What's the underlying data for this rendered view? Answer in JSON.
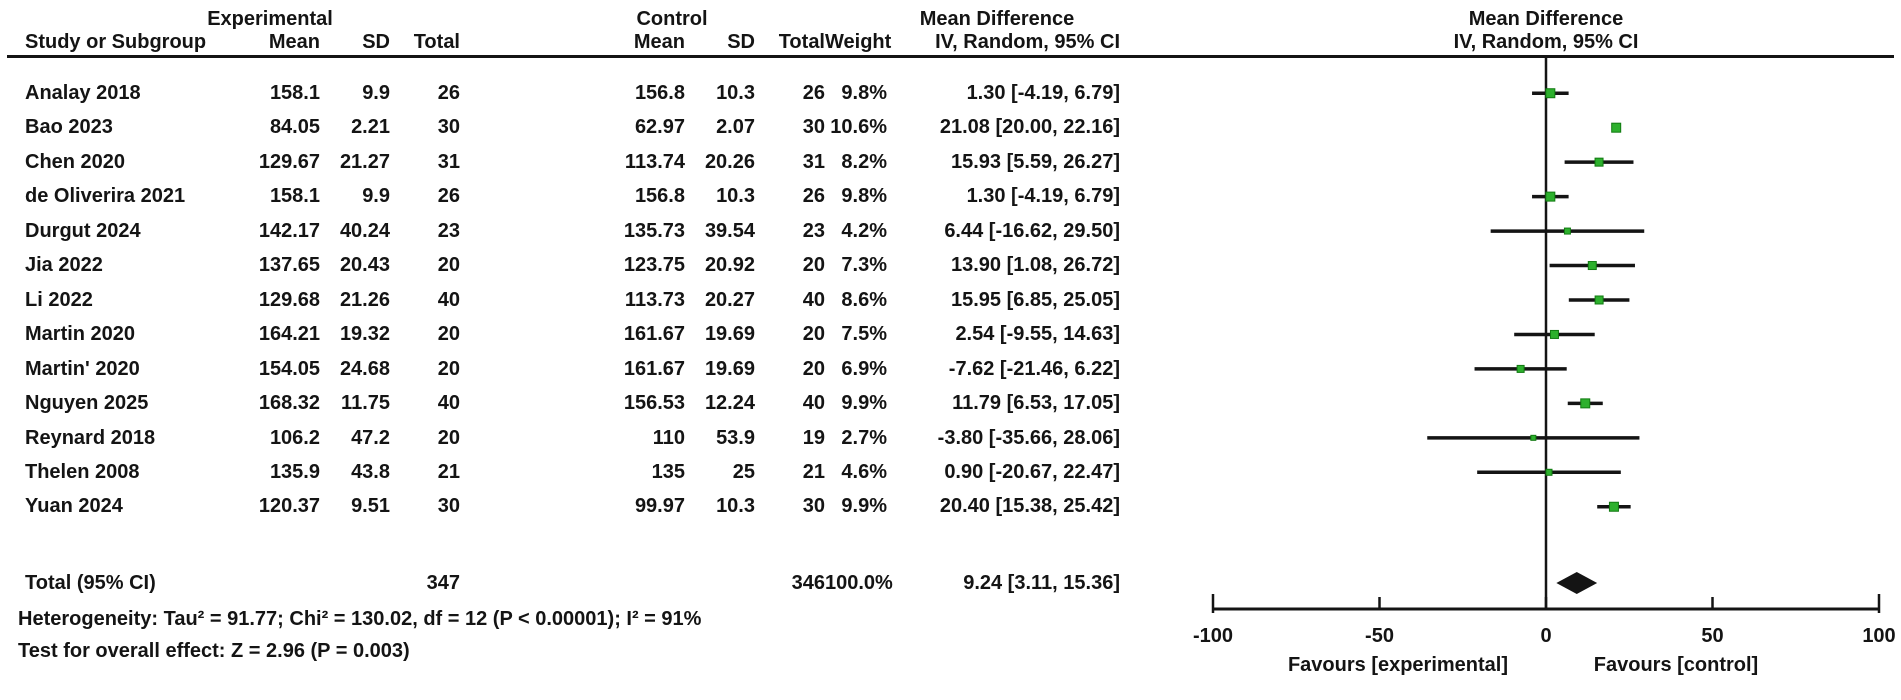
{
  "table": {
    "group_headers": {
      "experimental": "Experimental",
      "control": "Control",
      "mean_difference_left": "Mean Difference",
      "mean_difference_right": "Mean Difference",
      "method_right": "IV, Random, 95% CI"
    },
    "columns": {
      "study": "Study or Subgroup",
      "mean": "Mean",
      "sd": "SD",
      "total": "Total",
      "weight": "Weight",
      "ci": "IV, Random, 95% CI"
    }
  },
  "chart_data": {
    "type": "forest",
    "effect_measure": "Mean Difference, IV, Random, 95% CI",
    "studies": [
      {
        "study": "Analay 2018",
        "exp_mean": "158.1",
        "exp_sd": "9.9",
        "exp_total": "26",
        "ctrl_mean": "156.8",
        "ctrl_sd": "10.3",
        "ctrl_total": "26",
        "weight": "9.8%",
        "weight_val": 9.8,
        "ci_label": "1.30 [-4.19, 6.79]",
        "md": 1.3,
        "ci_low": -4.19,
        "ci_high": 6.79
      },
      {
        "study": "Bao 2023",
        "exp_mean": "84.05",
        "exp_sd": "2.21",
        "exp_total": "30",
        "ctrl_mean": "62.97",
        "ctrl_sd": "2.07",
        "ctrl_total": "30",
        "weight": "10.6%",
        "weight_val": 10.6,
        "ci_label": "21.08 [20.00, 22.16]",
        "md": 21.08,
        "ci_low": 20.0,
        "ci_high": 22.16
      },
      {
        "study": "Chen 2020",
        "exp_mean": "129.67",
        "exp_sd": "21.27",
        "exp_total": "31",
        "ctrl_mean": "113.74",
        "ctrl_sd": "20.26",
        "ctrl_total": "31",
        "weight": "8.2%",
        "weight_val": 8.2,
        "ci_label": "15.93 [5.59, 26.27]",
        "md": 15.93,
        "ci_low": 5.59,
        "ci_high": 26.27
      },
      {
        "study": "de Oliverira 2021",
        "exp_mean": "158.1",
        "exp_sd": "9.9",
        "exp_total": "26",
        "ctrl_mean": "156.8",
        "ctrl_sd": "10.3",
        "ctrl_total": "26",
        "weight": "9.8%",
        "weight_val": 9.8,
        "ci_label": "1.30 [-4.19, 6.79]",
        "md": 1.3,
        "ci_low": -4.19,
        "ci_high": 6.79
      },
      {
        "study": "Durgut 2024",
        "exp_mean": "142.17",
        "exp_sd": "40.24",
        "exp_total": "23",
        "ctrl_mean": "135.73",
        "ctrl_sd": "39.54",
        "ctrl_total": "23",
        "weight": "4.2%",
        "weight_val": 4.2,
        "ci_label": "6.44 [-16.62, 29.50]",
        "md": 6.44,
        "ci_low": -16.62,
        "ci_high": 29.5
      },
      {
        "study": "Jia 2022",
        "exp_mean": "137.65",
        "exp_sd": "20.43",
        "exp_total": "20",
        "ctrl_mean": "123.75",
        "ctrl_sd": "20.92",
        "ctrl_total": "20",
        "weight": "7.3%",
        "weight_val": 7.3,
        "ci_label": "13.90 [1.08, 26.72]",
        "md": 13.9,
        "ci_low": 1.08,
        "ci_high": 26.72
      },
      {
        "study": "Li 2022",
        "exp_mean": "129.68",
        "exp_sd": "21.26",
        "exp_total": "40",
        "ctrl_mean": "113.73",
        "ctrl_sd": "20.27",
        "ctrl_total": "40",
        "weight": "8.6%",
        "weight_val": 8.6,
        "ci_label": "15.95 [6.85, 25.05]",
        "md": 15.95,
        "ci_low": 6.85,
        "ci_high": 25.05
      },
      {
        "study": "Martin 2020",
        "exp_mean": "164.21",
        "exp_sd": "19.32",
        "exp_total": "20",
        "ctrl_mean": "161.67",
        "ctrl_sd": "19.69",
        "ctrl_total": "20",
        "weight": "7.5%",
        "weight_val": 7.5,
        "ci_label": "2.54 [-9.55, 14.63]",
        "md": 2.54,
        "ci_low": -9.55,
        "ci_high": 14.63
      },
      {
        "study": "Martin' 2020",
        "exp_mean": "154.05",
        "exp_sd": "24.68",
        "exp_total": "20",
        "ctrl_mean": "161.67",
        "ctrl_sd": "19.69",
        "ctrl_total": "20",
        "weight": "6.9%",
        "weight_val": 6.9,
        "ci_label": "-7.62 [-21.46, 6.22]",
        "md": -7.62,
        "ci_low": -21.46,
        "ci_high": 6.22
      },
      {
        "study": "Nguyen 2025",
        "exp_mean": "168.32",
        "exp_sd": "11.75",
        "exp_total": "40",
        "ctrl_mean": "156.53",
        "ctrl_sd": "12.24",
        "ctrl_total": "40",
        "weight": "9.9%",
        "weight_val": 9.9,
        "ci_label": "11.79 [6.53, 17.05]",
        "md": 11.79,
        "ci_low": 6.53,
        "ci_high": 17.05
      },
      {
        "study": "Reynard 2018",
        "exp_mean": "106.2",
        "exp_sd": "47.2",
        "exp_total": "20",
        "ctrl_mean": "110",
        "ctrl_sd": "53.9",
        "ctrl_total": "19",
        "weight": "2.7%",
        "weight_val": 2.7,
        "ci_label": "-3.80 [-35.66, 28.06]",
        "md": -3.8,
        "ci_low": -35.66,
        "ci_high": 28.06
      },
      {
        "study": "Thelen 2008",
        "exp_mean": "135.9",
        "exp_sd": "43.8",
        "exp_total": "21",
        "ctrl_mean": "135",
        "ctrl_sd": "25",
        "ctrl_total": "21",
        "weight": "4.6%",
        "weight_val": 4.6,
        "ci_label": "0.90 [-20.67, 22.47]",
        "md": 0.9,
        "ci_low": -20.67,
        "ci_high": 22.47
      },
      {
        "study": "Yuan 2024",
        "exp_mean": "120.37",
        "exp_sd": "9.51",
        "exp_total": "30",
        "ctrl_mean": "99.97",
        "ctrl_sd": "10.3",
        "ctrl_total": "30",
        "weight": "9.9%",
        "weight_val": 9.9,
        "ci_label": "20.40 [15.38, 25.42]",
        "md": 20.4,
        "ci_low": 15.38,
        "ci_high": 25.42
      }
    ],
    "total": {
      "label": "Total (95% CI)",
      "exp_total": "347",
      "ctrl_total": "346",
      "weight": "100.0%",
      "ci_label": "9.24 [3.11, 15.36]",
      "md": 9.24,
      "ci_low": 3.11,
      "ci_high": 15.36
    },
    "axis": {
      "min": -100,
      "max": 100,
      "ticks": [
        -100,
        -50,
        0,
        50,
        100
      ],
      "tick_labels": [
        "-100",
        "-50",
        "0",
        "50",
        "100"
      ],
      "favours_left": "Favours [experimental]",
      "favours_right": "Favours [control]"
    },
    "footnotes": {
      "heterogeneity": "Heterogeneity: Tau² = 91.77; Chi² = 130.02, df = 12 (P < 0.00001); I² = 91%",
      "overall_effect": "Test for overall effect: Z = 2.96 (P = 0.003)"
    },
    "colors": {
      "marker_fill": "#2db02d",
      "marker_border": "#117a11",
      "ink": "#141414"
    }
  }
}
